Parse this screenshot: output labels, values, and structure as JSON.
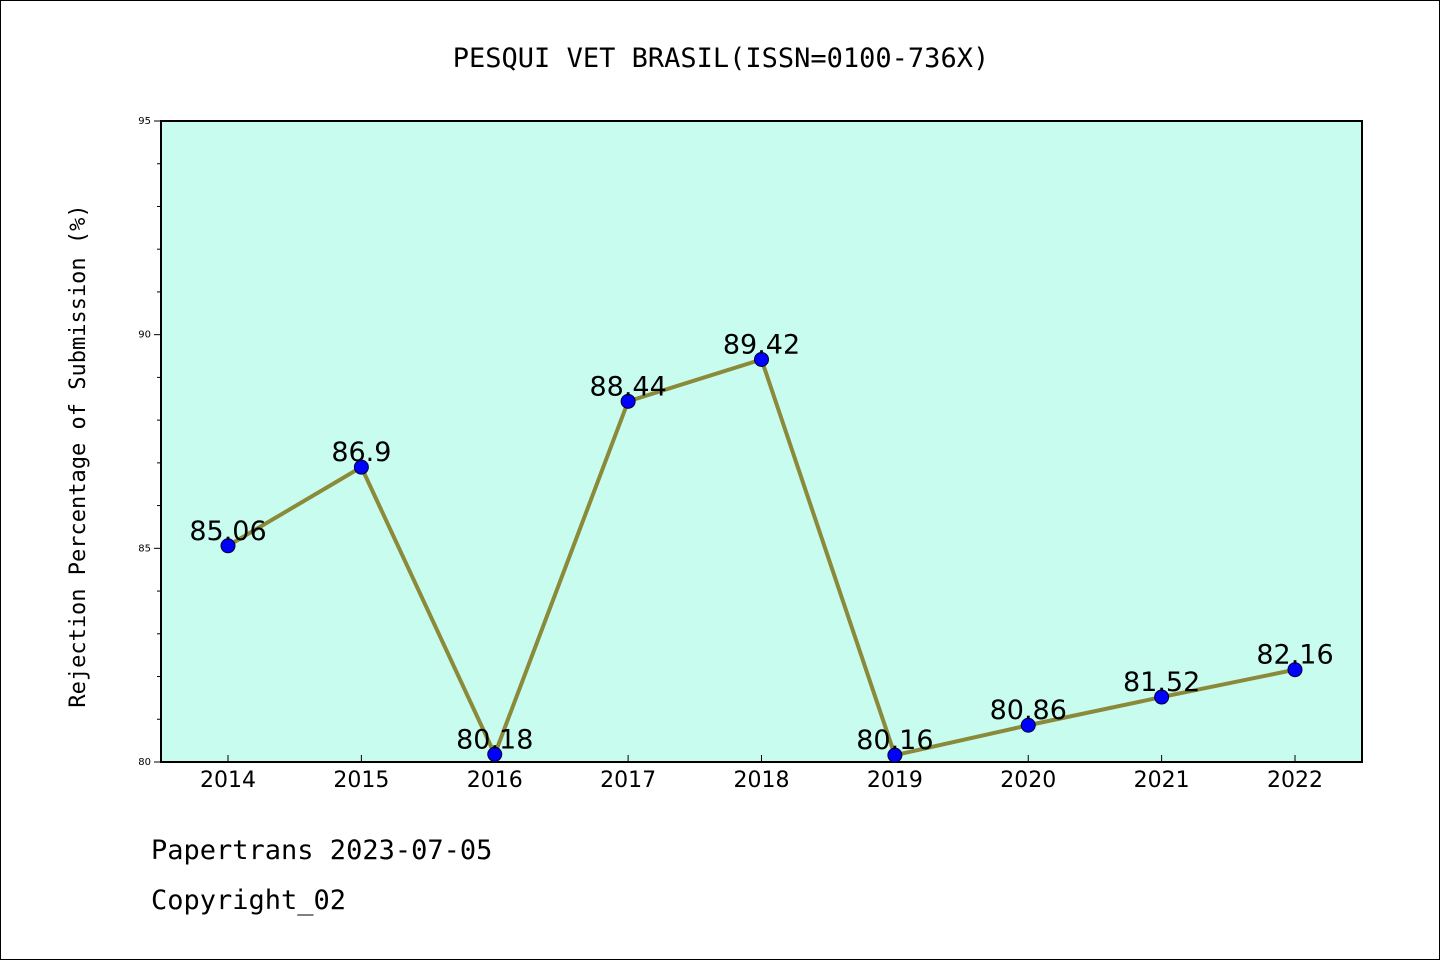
{
  "chart_data": {
    "type": "line",
    "title": "PESQUI VET BRASIL(ISSN=0100-736X)",
    "xlabel": "",
    "ylabel": "Rejection Percentage of Submission (%)",
    "categories": [
      "2014",
      "2015",
      "2016",
      "2017",
      "2018",
      "2019",
      "2020",
      "2021",
      "2022"
    ],
    "series": [
      {
        "values": [
          85.06,
          86.9,
          80.18,
          88.44,
          89.42,
          80.16,
          80.86,
          81.52,
          82.16
        ],
        "labels": [
          "85.06",
          "86.9",
          "80.18",
          "88.44",
          "89.42",
          "80.16",
          "80.86",
          "81.52",
          "82.16"
        ]
      }
    ],
    "ylim": [
      80,
      95
    ],
    "yticks": [
      80,
      85,
      90,
      95
    ],
    "ytick_labels": [
      "80",
      "85",
      "90",
      "95"
    ],
    "grid": false,
    "colors": {
      "plot_background": "#c8fcee",
      "line": "#8b8a3a",
      "marker": "#0000ff"
    }
  },
  "footer": {
    "line1": "Papertrans 2023-07-05",
    "line2": "Copyright_02"
  }
}
